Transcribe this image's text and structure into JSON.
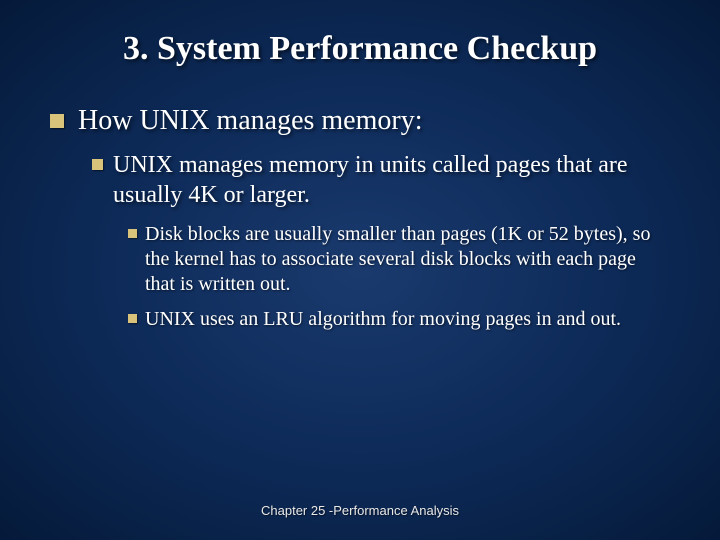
{
  "title": "3. System Performance Checkup",
  "level1": {
    "text": "How UNIX manages memory:"
  },
  "level2": {
    "text": "UNIX manages memory in units called pages that are usually 4K or larger."
  },
  "level3a": {
    "text": "Disk blocks are usually smaller than pages (1K or 52 bytes), so the kernel has to associate several disk blocks with each page that is  written out."
  },
  "level3b": {
    "text": "UNIX uses an LRU algorithm for moving pages in and out."
  },
  "footer": "Chapter 25 -Performance Analysis",
  "colors": {
    "bullet": "#d9c27a",
    "text": "#ffffff",
    "background_center": "#1a3a6e",
    "background_edge": "#051a3a"
  },
  "typography": {
    "title_fontsize": 34,
    "lvl1_fontsize": 28,
    "lvl2_fontsize": 24,
    "lvl3_fontsize": 20,
    "footer_fontsize": 13,
    "body_font": "Times New Roman",
    "footer_font": "Arial"
  }
}
